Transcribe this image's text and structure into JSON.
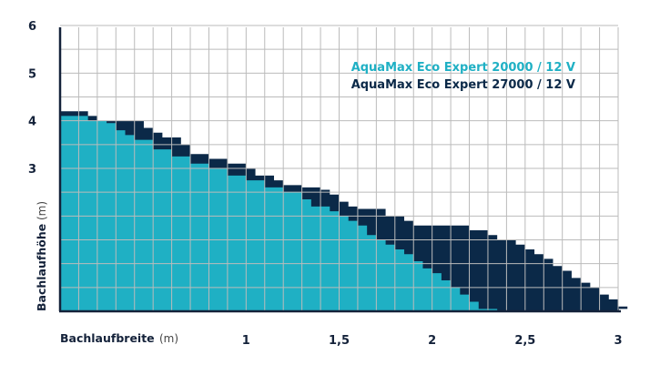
{
  "chart_data": {
    "type": "area",
    "colors": {
      "series_small": "#1fb0c4",
      "series_large": "#0b2948",
      "grid": "#bbbbbb",
      "text": "#14223a"
    },
    "x_axis": {
      "title": "Bachlaufbreite",
      "unit": "(m)",
      "range": [
        0,
        3
      ]
    },
    "y_axis": {
      "title": "Bachlaufhöhe",
      "unit": "(m)",
      "range": [
        0,
        6
      ]
    },
    "x_ticks": [
      {
        "value": 1,
        "label": "1"
      },
      {
        "value": 1.5,
        "label": "1,5"
      },
      {
        "value": 2,
        "label": "2"
      },
      {
        "value": 2.5,
        "label": "2,5"
      },
      {
        "value": 3,
        "label": "3"
      }
    ],
    "y_ticks": [
      {
        "value": 3,
        "label": "3"
      },
      {
        "value": 4,
        "label": "4"
      },
      {
        "value": 5,
        "label": "5"
      },
      {
        "value": 6,
        "label": "6"
      }
    ],
    "series": [
      {
        "name": "AquaMax Eco Expert 27000 / 12 V",
        "color": "#0b2948",
        "points": [
          [
            0,
            4.2
          ],
          [
            0.1,
            4.2
          ],
          [
            0.15,
            4.1
          ],
          [
            0.2,
            4.0
          ],
          [
            0.4,
            4.0
          ],
          [
            0.45,
            3.85
          ],
          [
            0.5,
            3.75
          ],
          [
            0.55,
            3.65
          ],
          [
            0.65,
            3.5
          ],
          [
            0.7,
            3.3
          ],
          [
            0.8,
            3.2
          ],
          [
            0.9,
            3.1
          ],
          [
            1.0,
            3.0
          ],
          [
            1.05,
            2.85
          ],
          [
            1.15,
            2.75
          ],
          [
            1.2,
            2.65
          ],
          [
            1.3,
            2.6
          ],
          [
            1.4,
            2.55
          ],
          [
            1.45,
            2.45
          ],
          [
            1.5,
            2.3
          ],
          [
            1.55,
            2.2
          ],
          [
            1.6,
            2.15
          ],
          [
            1.75,
            2.0
          ],
          [
            1.85,
            1.9
          ],
          [
            1.9,
            1.8
          ],
          [
            2.1,
            1.8
          ],
          [
            2.2,
            1.7
          ],
          [
            2.3,
            1.6
          ],
          [
            2.35,
            1.5
          ],
          [
            2.45,
            1.4
          ],
          [
            2.5,
            1.3
          ],
          [
            2.55,
            1.2
          ],
          [
            2.6,
            1.1
          ],
          [
            2.65,
            0.95
          ],
          [
            2.7,
            0.85
          ],
          [
            2.75,
            0.7
          ],
          [
            2.8,
            0.6
          ],
          [
            2.85,
            0.5
          ],
          [
            2.9,
            0.35
          ],
          [
            2.95,
            0.25
          ],
          [
            3.0,
            0.1
          ],
          [
            3.05,
            0.05
          ],
          [
            3.2,
            0.05
          ]
        ]
      },
      {
        "name": "AquaMax Eco Expert 20000 / 12 V",
        "color": "#1fb0c4",
        "points": [
          [
            0,
            4.1
          ],
          [
            0.1,
            4.1
          ],
          [
            0.15,
            4.0
          ],
          [
            0.25,
            3.95
          ],
          [
            0.3,
            3.8
          ],
          [
            0.35,
            3.7
          ],
          [
            0.4,
            3.6
          ],
          [
            0.5,
            3.4
          ],
          [
            0.6,
            3.25
          ],
          [
            0.7,
            3.1
          ],
          [
            0.8,
            3.0
          ],
          [
            0.9,
            2.85
          ],
          [
            1.0,
            2.75
          ],
          [
            1.1,
            2.6
          ],
          [
            1.2,
            2.5
          ],
          [
            1.3,
            2.35
          ],
          [
            1.35,
            2.2
          ],
          [
            1.45,
            2.1
          ],
          [
            1.5,
            2.0
          ],
          [
            1.55,
            1.9
          ],
          [
            1.6,
            1.8
          ],
          [
            1.65,
            1.6
          ],
          [
            1.7,
            1.5
          ],
          [
            1.75,
            1.4
          ],
          [
            1.8,
            1.3
          ],
          [
            1.85,
            1.2
          ],
          [
            1.9,
            1.05
          ],
          [
            1.95,
            0.9
          ],
          [
            2.0,
            0.8
          ],
          [
            2.05,
            0.65
          ],
          [
            2.1,
            0.5
          ],
          [
            2.15,
            0.35
          ],
          [
            2.2,
            0.2
          ],
          [
            2.25,
            0.05
          ],
          [
            2.35,
            0.05
          ]
        ]
      }
    ]
  }
}
